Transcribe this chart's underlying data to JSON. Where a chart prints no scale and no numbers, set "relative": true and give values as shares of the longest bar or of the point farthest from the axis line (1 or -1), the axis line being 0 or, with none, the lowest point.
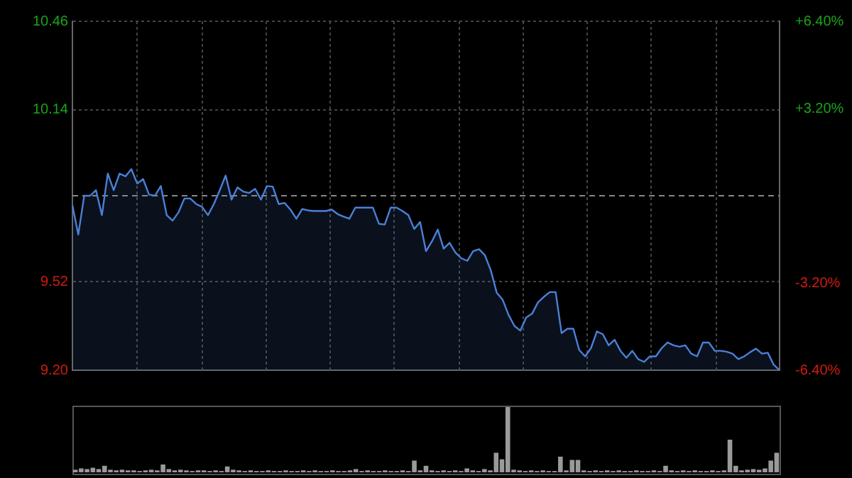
{
  "chart_data": [
    {
      "type": "area",
      "categories": [
        null,
        null,
        null,
        null,
        null,
        null,
        null,
        null,
        null,
        null,
        null,
        null,
        null,
        null,
        null,
        null,
        null,
        null,
        null,
        null,
        null,
        null,
        null,
        null,
        null,
        null,
        null,
        null,
        null,
        null,
        null,
        null,
        null,
        null,
        null,
        null,
        null,
        null,
        null,
        null,
        null,
        null,
        null,
        null,
        null,
        null,
        null,
        null,
        null,
        null,
        null,
        null,
        null,
        null,
        null,
        null,
        null,
        null,
        null,
        null,
        null,
        null,
        null,
        null,
        null,
        null,
        null,
        null,
        null,
        null,
        null,
        null,
        null,
        null,
        null,
        null,
        null,
        null,
        null,
        null,
        null,
        null,
        null,
        null,
        null,
        null,
        null,
        null,
        null,
        null,
        null,
        null,
        null,
        null,
        null,
        null,
        null,
        null,
        null,
        null,
        null,
        null,
        null,
        null,
        null,
        null,
        null,
        null,
        null,
        null,
        null,
        null,
        null,
        null,
        null,
        null,
        null,
        null,
        null,
        null,
        null
      ],
      "series": [
        {
          "color": "#4a80d8",
          "values": [
            9.795,
            9.69,
            9.83,
            9.83,
            9.85,
            9.76,
            9.91,
            9.85,
            9.91,
            9.9,
            9.926,
            9.874,
            9.89,
            9.834,
            9.83,
            9.865,
            9.76,
            9.74,
            9.77,
            9.82,
            9.82,
            9.8,
            9.79,
            9.76,
            9.8,
            9.85,
            9.903,
            9.816,
            9.86,
            9.845,
            9.84,
            9.855,
            9.816,
            9.865,
            9.863,
            9.8,
            9.804,
            9.78,
            9.747,
            9.782,
            9.777,
            9.775,
            9.775,
            9.775,
            9.78,
            9.764,
            9.755,
            9.747,
            9.787,
            9.787,
            9.787,
            9.787,
            9.729,
            9.726,
            9.787,
            9.787,
            9.775,
            9.76,
            9.71,
            9.735,
            9.63,
            9.665,
            9.708,
            9.639,
            9.66,
            9.625,
            9.604,
            9.595,
            9.63,
            9.637,
            9.615,
            9.56,
            9.48,
            9.455,
            9.4,
            9.36,
            9.343,
            9.39,
            9.404,
            9.445,
            9.465,
            9.482,
            9.482,
            9.334,
            9.35,
            9.35,
            9.273,
            9.25,
            9.28,
            9.34,
            9.33,
            9.29,
            9.31,
            9.27,
            9.245,
            9.27,
            9.24,
            9.23,
            9.25,
            9.25,
            9.28,
            9.3,
            9.29,
            9.285,
            9.29,
            9.26,
            9.25,
            9.3,
            9.3,
            9.27,
            9.27,
            9.267,
            9.26,
            9.24,
            9.25,
            9.265,
            9.278,
            9.26,
            9.263,
            9.22,
            9.2
          ]
        }
      ],
      "ylim": [
        9.2,
        10.46
      ],
      "yticks": [
        {
          "value": 9.2,
          "label": "9.20"
        },
        {
          "value": 9.52,
          "label": "9.52"
        },
        {
          "value": 10.14,
          "label": "10.14"
        },
        {
          "value": 10.46,
          "label": "10.46"
        }
      ],
      "y2lim": [
        -6.4,
        6.4
      ],
      "y2ticks": [
        {
          "value": -6.4,
          "label": "-6.40%"
        },
        {
          "value": -3.2,
          "label": "-3.20%"
        },
        {
          "value": 3.2,
          "label": "+3.20%"
        },
        {
          "value": 6.4,
          "label": "+6.40%"
        }
      ],
      "ref_lines": [
        {
          "axis": "y",
          "value": 9.83,
          "label": null,
          "color": "#888888",
          "line_style": "dashed"
        }
      ],
      "grid": true,
      "legend": false,
      "marker": "none"
    },
    {
      "type": "bar",
      "relative": true,
      "color": "#9a9a9a",
      "categories": [
        null,
        null,
        null,
        null,
        null,
        null,
        null,
        null,
        null,
        null,
        null,
        null,
        null,
        null,
        null,
        null,
        null,
        null,
        null,
        null,
        null,
        null,
        null,
        null,
        null,
        null,
        null,
        null,
        null,
        null,
        null,
        null,
        null,
        null,
        null,
        null,
        null,
        null,
        null,
        null,
        null,
        null,
        null,
        null,
        null,
        null,
        null,
        null,
        null,
        null,
        null,
        null,
        null,
        null,
        null,
        null,
        null,
        null,
        null,
        null,
        null,
        null,
        null,
        null,
        null,
        null,
        null,
        null,
        null,
        null,
        null,
        null,
        null,
        null,
        null,
        null,
        null,
        null,
        null,
        null,
        null,
        null,
        null,
        null,
        null,
        null,
        null,
        null,
        null,
        null,
        null,
        null,
        null,
        null,
        null,
        null,
        null,
        null,
        null,
        null,
        null,
        null,
        null,
        null,
        null,
        null,
        null,
        null,
        null,
        null,
        null,
        null,
        null,
        null,
        null,
        null,
        null,
        null,
        null,
        null,
        null
      ],
      "values": [
        0.04,
        0.06,
        0.05,
        0.07,
        0.05,
        0.1,
        0.04,
        0.03,
        0.04,
        0.03,
        0.03,
        0.02,
        0.03,
        0.04,
        0.03,
        0.12,
        0.05,
        0.03,
        0.04,
        0.03,
        0.02,
        0.03,
        0.03,
        0.02,
        0.03,
        0.02,
        0.09,
        0.04,
        0.03,
        0.02,
        0.03,
        0.02,
        0.02,
        0.03,
        0.02,
        0.02,
        0.03,
        0.02,
        0.02,
        0.03,
        0.02,
        0.03,
        0.02,
        0.02,
        0.03,
        0.02,
        0.02,
        0.03,
        0.05,
        0.02,
        0.03,
        0.02,
        0.02,
        0.03,
        0.02,
        0.02,
        0.03,
        0.02,
        0.18,
        0.03,
        0.1,
        0.03,
        0.02,
        0.03,
        0.02,
        0.03,
        0.02,
        0.06,
        0.03,
        0.02,
        0.05,
        0.03,
        0.3,
        0.2,
        1.0,
        0.04,
        0.03,
        0.02,
        0.03,
        0.02,
        0.03,
        0.02,
        0.02,
        0.24,
        0.03,
        0.19,
        0.19,
        0.03,
        0.02,
        0.03,
        0.02,
        0.03,
        0.02,
        0.03,
        0.02,
        0.02,
        0.03,
        0.02,
        0.02,
        0.03,
        0.02,
        0.1,
        0.03,
        0.02,
        0.03,
        0.02,
        0.03,
        0.02,
        0.02,
        0.03,
        0.02,
        0.03,
        0.5,
        0.1,
        0.03,
        0.04,
        0.05,
        0.04,
        0.06,
        0.18,
        0.3
      ],
      "legend": false
    }
  ]
}
